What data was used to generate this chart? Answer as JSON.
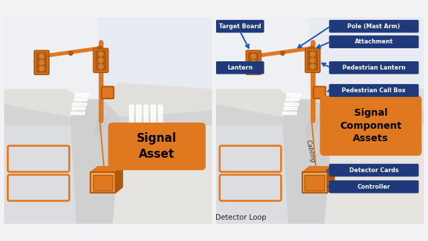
{
  "bg_color": "#f2f2f4",
  "panel_border": "#b0b8c8",
  "orange_main": "#E07820",
  "orange_light": "#F0A858",
  "orange_dark": "#B05810",
  "orange_mid": "#D08030",
  "blue_label_bg": "#1E3A7A",
  "blue_label_fg": "#FFFFFF",
  "road_color": "#D0D0D0",
  "road_edge": "#B8B8B8",
  "sidewalk_color": "#E8E8E4",
  "sidewalk2_color": "#DDDDD8",
  "grass_color": "#E4E8EE",
  "stripe_color": "#FFFFFF",
  "shadow_color": "#C8C8D0",
  "panel1_label": "Signal\nAsset",
  "panel2_label": "Signal\nComponent\nAssets",
  "label_bottom": "Detector Loop",
  "label_cabling": "Cabling"
}
